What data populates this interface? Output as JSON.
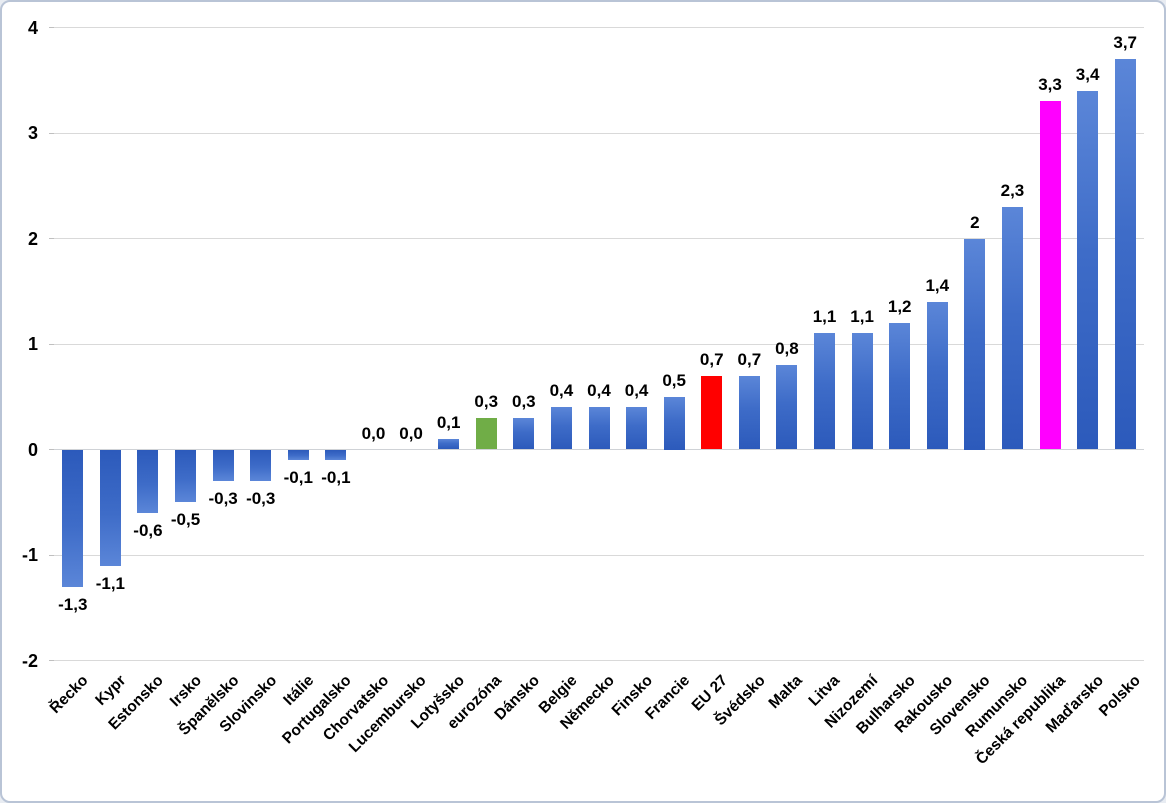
{
  "chart_data": {
    "type": "bar",
    "title": "",
    "xlabel": "",
    "ylabel": "",
    "categories": [
      "Řecko",
      "Kypr",
      "Estonsko",
      "Irsko",
      "Španělsko",
      "Slovinsko",
      "Itálie",
      "Portugalsko",
      "Chorvatsko",
      "Lucembursko",
      "Lotyšsko",
      "eurozóna",
      "Dánsko",
      "Belgie",
      "Německo",
      "Finsko",
      "Francie",
      "EU 27",
      "Švédsko",
      "Malta",
      "Litva",
      "Nizozemí",
      "Bulharsko",
      "Rakousko",
      "Slovensko",
      "Rumunsko",
      "Česká republika",
      "Maďarsko",
      "Polsko"
    ],
    "values": [
      -1.3,
      -1.1,
      -0.6,
      -0.5,
      -0.3,
      -0.3,
      -0.1,
      -0.1,
      0.0,
      0.0,
      0.1,
      0.3,
      0.3,
      0.4,
      0.4,
      0.4,
      0.5,
      0.7,
      0.7,
      0.8,
      1.1,
      1.1,
      1.2,
      1.4,
      2,
      2.3,
      3.3,
      3.4,
      3.7
    ],
    "value_labels": [
      "-1,3",
      "-1,1",
      "-0,6",
      "-0,5",
      "-0,3",
      "-0,3",
      "-0,1",
      "-0,1",
      "0,0",
      "0,0",
      "0,1",
      "0,3",
      "0,3",
      "0,4",
      "0,4",
      "0,4",
      "0,5",
      "0,7",
      "0,7",
      "0,8",
      "1,1",
      "1,1",
      "1,2",
      "1,4",
      "2",
      "2,3",
      "3,3",
      "3,4",
      "3,7"
    ],
    "bar_colors": [
      "",
      "",
      "",
      "",
      "",
      "",
      "",
      "",
      "",
      "",
      "",
      "#70AD47",
      "",
      "",
      "",
      "",
      "",
      "#FF0000",
      "",
      "",
      "",
      "",
      "",
      "",
      "",
      "",
      "#FF00FF",
      "",
      ""
    ],
    "ylim": [
      -2,
      4
    ],
    "yticks": [
      4,
      3,
      2,
      1,
      0,
      -1,
      -2
    ],
    "ytick_labels": [
      "4",
      "3",
      "2",
      "1",
      "0",
      "-1",
      "-2"
    ],
    "grid": true,
    "legend": "none",
    "colors": {
      "bar_default_top": "#5b86d8",
      "bar_default_bottom": "#2c5abb",
      "eurozone_bar": "#70AD47",
      "eu27_bar": "#FF0000",
      "czech_republic_bar": "#FF00FF",
      "gridline": "#d9d9d9",
      "frame_border": "#b9c4d6",
      "text": "#000000"
    }
  }
}
